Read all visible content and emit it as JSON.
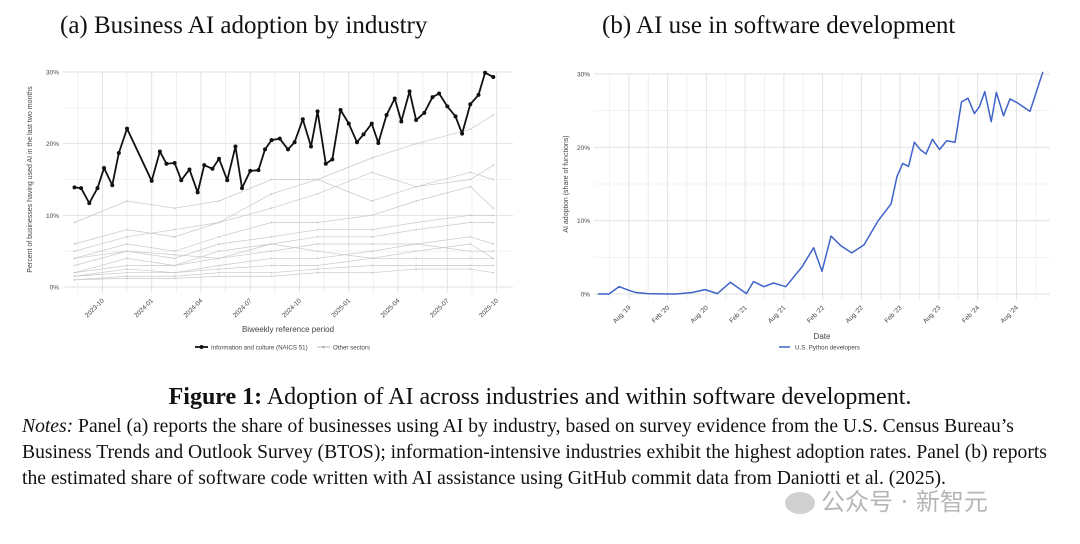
{
  "panel_a_title": "(a) Business AI adoption by industry",
  "panel_b_title": "(b) AI use in software development",
  "caption": {
    "label": "Figure 1:",
    "text": " Adoption of AI across industries and within software development."
  },
  "notes": {
    "label": "Notes:",
    "text": " Panel (a) reports the share of businesses using AI by industry, based on survey evidence from the U.S. Census Bureau’s Business Trends and Outlook Survey (BTOS); information-intensive industries exhibit the highest adoption rates. Panel (b) reports the estimated share of software code written with AI assistance using GitHub commit data from Daniotti et al. (2025)."
  },
  "watermark": "公众号 · 新智元",
  "colors": {
    "highlight": "#111111",
    "other": "#c8c8c8",
    "python": "#3f63c9",
    "grid": "#e2e2e2"
  },
  "chart_data": [
    {
      "type": "line",
      "title": "(a) Business AI adoption by industry",
      "xlabel": "Biweekly reference period",
      "ylabel": "Percent of businesses having used AI in the last two months",
      "x_unit": "months since 2023-10",
      "xlim": [
        -2.4,
        25.0
      ],
      "ylim": [
        0,
        30
      ],
      "y_ticks": [
        0,
        10,
        20,
        30
      ],
      "y_tick_labels": [
        "0%",
        "10%",
        "20%",
        "30%"
      ],
      "x_ticks": [
        0,
        3,
        6,
        9,
        12,
        15,
        18,
        21,
        24
      ],
      "x_tick_labels": [
        "2023-10",
        "2024-01",
        "2024-04",
        "2024-07",
        "2024-10",
        "2025-01",
        "2025-04",
        "2025-07",
        "2025-10"
      ],
      "legend": [
        "Information and culture (NAICS 51)",
        "Other sectors"
      ],
      "legend_position": "bottom",
      "highlight": {
        "name": "Information and culture (NAICS 51)",
        "x": [
          -1.7,
          -1.3,
          -0.8,
          -0.3,
          0.1,
          0.6,
          1.0,
          1.5,
          3.0,
          3.5,
          3.9,
          4.4,
          4.8,
          5.3,
          5.8,
          6.2,
          6.7,
          7.1,
          7.6,
          8.1,
          8.5,
          9.0,
          9.5,
          9.9,
          10.3,
          10.8,
          11.3,
          11.7,
          12.2,
          12.7,
          13.1,
          13.6,
          14.0,
          14.5,
          15.0,
          15.5,
          15.9,
          16.4,
          16.8,
          17.3,
          17.8,
          18.2,
          18.7,
          19.1,
          19.6,
          20.1,
          20.5,
          21.0,
          21.5,
          21.9,
          22.4,
          22.9,
          23.3,
          23.8
        ],
        "y": [
          13.9,
          13.8,
          11.7,
          13.8,
          16.6,
          14.2,
          18.7,
          22.1,
          14.8,
          18.9,
          17.2,
          17.3,
          14.9,
          16.4,
          13.2,
          17.0,
          16.5,
          17.9,
          14.9,
          19.6,
          13.8,
          16.2,
          16.3,
          19.2,
          20.5,
          20.7,
          19.2,
          20.2,
          23.4,
          19.6,
          24.5,
          17.2,
          17.8,
          24.7,
          22.8,
          20.2,
          21.3,
          22.8,
          20.1,
          24.0,
          26.3,
          23.1,
          27.3,
          23.3,
          24.3,
          26.5,
          27.0,
          25.2,
          23.8,
          21.4,
          25.5,
          26.8,
          29.9,
          29.3
        ]
      },
      "others_x": [
        -1.7,
        1.5,
        4.4,
        7.1,
        10.3,
        13.1,
        16.4,
        19.1,
        22.4,
        23.8
      ],
      "others": [
        [
          9,
          12,
          11,
          12,
          15,
          15,
          18,
          20,
          22,
          24
        ],
        [
          6,
          8,
          7,
          9,
          11,
          13,
          16,
          14,
          15,
          17
        ],
        [
          5,
          7,
          8,
          9,
          13,
          15,
          12,
          14,
          16,
          15
        ],
        [
          4,
          6,
          5,
          7,
          9,
          9,
          10,
          12,
          14,
          11
        ],
        [
          3,
          5,
          4,
          6,
          7,
          8,
          8,
          9,
          10,
          10
        ],
        [
          2,
          4,
          3,
          5,
          6,
          7,
          7,
          8,
          9,
          9
        ],
        [
          2,
          3,
          3,
          4,
          5,
          6,
          6,
          6,
          7,
          6
        ],
        [
          1.5,
          2.5,
          2,
          3,
          4,
          4,
          5,
          6,
          5,
          5
        ],
        [
          1.5,
          2,
          2,
          2.5,
          3,
          3,
          4,
          4,
          4,
          4
        ],
        [
          1,
          1.5,
          1.5,
          2,
          2,
          2.5,
          3,
          3,
          3,
          3
        ],
        [
          1,
          1.2,
          1.2,
          1.5,
          1.5,
          2,
          2,
          2.5,
          2.5,
          2
        ],
        [
          4,
          5,
          4.5,
          4,
          6,
          5,
          4,
          5,
          6,
          4
        ]
      ]
    },
    {
      "type": "line",
      "title": "(b) AI use in software development",
      "xlabel": "Date",
      "ylabel": "AI adoption (share of functions)",
      "x_unit": "months since Aug 2019",
      "xlim": [
        -5.4,
        65.2
      ],
      "ylim": [
        0,
        30
      ],
      "y_ticks": [
        0,
        10,
        20,
        30
      ],
      "y_tick_labels": [
        "0%",
        "10%",
        "20%",
        "30%"
      ],
      "x_ticks": [
        0,
        6,
        12,
        18,
        24,
        30,
        36,
        42,
        48,
        54,
        60
      ],
      "x_tick_labels": [
        "Aug '19",
        "Feb '20",
        "Aug '20",
        "Feb '21",
        "Aug '21",
        "Feb '22",
        "Aug '22",
        "Feb '23",
        "Aug '23",
        "Feb '24",
        "Aug '24"
      ],
      "legend": [
        "U.S. Python developers"
      ],
      "legend_position": "bottom",
      "series": [
        {
          "name": "U.S. Python developers",
          "x": [
            -4.8,
            -3.1,
            -1.5,
            0,
            1.1,
            2.9,
            6,
            7.3,
            9.8,
            11.8,
            13.7,
            15.7,
            18.2,
            19.3,
            20.9,
            22.4,
            24.3,
            26.8,
            28.6,
            29.9,
            31.3,
            32.8,
            34.5,
            36.4,
            38.6,
            40.6,
            41.5,
            42.4,
            43.3,
            44.2,
            45.1,
            46.0,
            47.0,
            48.1,
            49.2,
            50.5,
            51.5,
            52.5,
            53.5,
            54.3,
            55.1,
            56.1,
            56.9,
            58.0,
            59.0,
            60.1,
            62.1,
            64.1
          ],
          "y": [
            0,
            0,
            1.0,
            0.5,
            0.2,
            0.05,
            0,
            0,
            0.2,
            0.6,
            0.05,
            1.6,
            0.05,
            1.7,
            1.0,
            1.5,
            1.0,
            3.7,
            6.3,
            3.1,
            7.9,
            6.6,
            5.6,
            6.7,
            10.0,
            12.3,
            16.0,
            17.8,
            17.4,
            20.7,
            19.7,
            19.1,
            21.1,
            19.7,
            20.9,
            20.7,
            26.2,
            26.7,
            24.6,
            25.6,
            27.6,
            23.5,
            27.5,
            24.3,
            26.6,
            26.1,
            24.9,
            30.3
          ]
        }
      ]
    }
  ]
}
